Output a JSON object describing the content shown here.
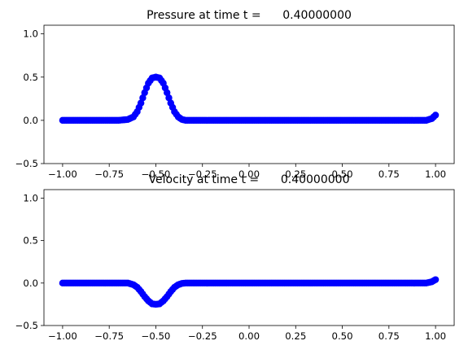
{
  "chart_data": [
    {
      "type": "scatter",
      "title": "Pressure at time t =      0.40000000",
      "xlabel": "",
      "ylabel": "",
      "xlim": [
        -1.1,
        1.1
      ],
      "ylim": [
        -0.5,
        1.1
      ],
      "xticks": [
        "−1.00",
        "−0.75",
        "−0.50",
        "−0.25",
        "0.00",
        "0.25",
        "0.50",
        "0.75",
        "1.00"
      ],
      "xtick_values": [
        -1.0,
        -0.75,
        -0.5,
        -0.25,
        0.0,
        0.25,
        0.5,
        0.75,
        1.0
      ],
      "yticks": [
        "−0.5",
        "0.0",
        "0.5",
        "1.0"
      ],
      "ytick_values": [
        -0.5,
        0.0,
        0.5,
        1.0
      ],
      "grid": false,
      "marker_color": "#0000ff",
      "series": [
        {
          "x": [
            -1.0,
            -0.9,
            -0.8,
            -0.7,
            -0.65,
            -0.62,
            -0.6,
            -0.58,
            -0.56,
            -0.54,
            -0.52,
            -0.5,
            -0.48,
            -0.46,
            -0.44,
            -0.42,
            -0.4,
            -0.38,
            -0.36,
            -0.34,
            -0.3,
            -0.2,
            -0.1,
            0.0,
            0.1,
            0.2,
            0.3,
            0.4,
            0.5,
            0.6,
            0.7,
            0.8,
            0.9,
            0.95,
            0.98,
            1.0
          ],
          "y": [
            0.0,
            0.0,
            0.0,
            0.0,
            0.01,
            0.04,
            0.1,
            0.2,
            0.32,
            0.43,
            0.49,
            0.5,
            0.49,
            0.43,
            0.32,
            0.2,
            0.1,
            0.04,
            0.01,
            0.0,
            0.0,
            0.0,
            0.0,
            0.0,
            0.0,
            0.0,
            0.0,
            0.0,
            0.0,
            0.0,
            0.0,
            0.0,
            0.0,
            0.0,
            0.02,
            0.06
          ]
        }
      ]
    },
    {
      "type": "scatter",
      "title": "Velocity at time t =      0.40000000",
      "xlabel": "",
      "ylabel": "",
      "xlim": [
        -1.1,
        1.1
      ],
      "ylim": [
        -0.5,
        1.1
      ],
      "xticks": [
        "−1.00",
        "−0.75",
        "−0.50",
        "−0.25",
        "0.00",
        "0.25",
        "0.50",
        "0.75",
        "1.00"
      ],
      "xtick_values": [
        -1.0,
        -0.75,
        -0.5,
        -0.25,
        0.0,
        0.25,
        0.5,
        0.75,
        1.0
      ],
      "yticks": [
        "−0.5",
        "0.0",
        "0.5",
        "1.0"
      ],
      "ytick_values": [
        -0.5,
        0.0,
        0.5,
        1.0
      ],
      "grid": false,
      "marker_color": "#0000ff",
      "series": [
        {
          "x": [
            -1.0,
            -0.9,
            -0.8,
            -0.7,
            -0.65,
            -0.62,
            -0.6,
            -0.58,
            -0.56,
            -0.54,
            -0.52,
            -0.5,
            -0.48,
            -0.46,
            -0.44,
            -0.42,
            -0.4,
            -0.38,
            -0.36,
            -0.34,
            -0.3,
            -0.2,
            -0.1,
            0.0,
            0.1,
            0.2,
            0.3,
            0.4,
            0.5,
            0.6,
            0.7,
            0.8,
            0.9,
            0.95,
            0.98,
            1.0
          ],
          "y": [
            0.0,
            0.0,
            0.0,
            0.0,
            0.0,
            -0.02,
            -0.05,
            -0.1,
            -0.16,
            -0.21,
            -0.245,
            -0.25,
            -0.245,
            -0.21,
            -0.16,
            -0.1,
            -0.05,
            -0.02,
            -0.005,
            0.0,
            0.0,
            0.0,
            0.0,
            0.0,
            0.0,
            0.0,
            0.0,
            0.0,
            0.0,
            0.0,
            0.0,
            0.0,
            0.0,
            0.0,
            0.015,
            0.04
          ]
        }
      ]
    }
  ]
}
